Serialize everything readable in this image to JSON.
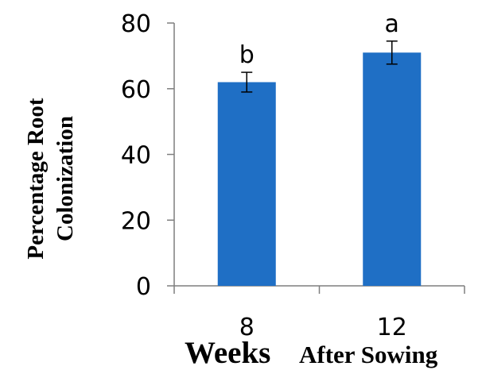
{
  "chart_data": {
    "type": "bar",
    "categories": [
      "8",
      "12"
    ],
    "values": [
      62,
      71
    ],
    "errors": [
      3,
      3.5
    ],
    "annotations": [
      "b",
      "a"
    ],
    "ylabel_line1": "Percentage Root",
    "ylabel_line2": "Colonization",
    "xlabel_part1": "Weeks",
    "xlabel_part2": "After Sowing",
    "ylim": [
      0,
      80
    ],
    "yticks": [
      0,
      20,
      40,
      60,
      80
    ],
    "bar_color": "#1f6fc5",
    "grid": false
  }
}
